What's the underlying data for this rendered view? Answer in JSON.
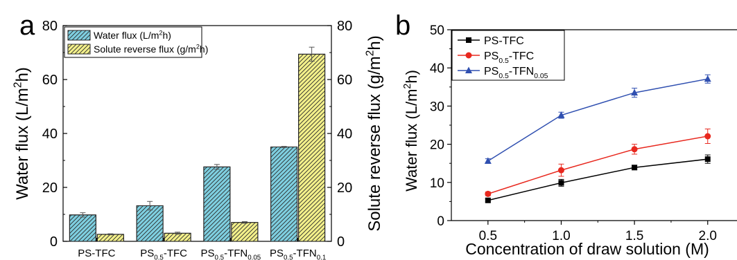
{
  "panels": {
    "a_label": "a",
    "b_label": "b"
  },
  "colors": {
    "water_flux": "#7ecfe0",
    "solute_flux": "#f3f08a",
    "ps_tfc": "#000000",
    "ps05_tfc": "#e8281e",
    "ps05_tfn005": "#2f4fb0"
  },
  "chart_data": [
    {
      "type": "bar",
      "panel": "a",
      "categories": [
        {
          "base": "PS-TFC",
          "sub": "",
          "mid": "",
          "sub2": ""
        },
        {
          "base": "PS",
          "sub": "0.5",
          "mid": "-TFC",
          "sub2": ""
        },
        {
          "base": "PS",
          "sub": "0.5",
          "mid": "-TFN",
          "sub2": "0.05"
        },
        {
          "base": "PS",
          "sub": "0.5",
          "mid": "-TFN",
          "sub2": "0.1"
        }
      ],
      "series": [
        {
          "name": "Water flux (L/m",
          "name_sup": "2",
          "name_tail": "h)",
          "axis": "left",
          "values": [
            9.8,
            13.2,
            27.6,
            35.0
          ],
          "errors": [
            0.8,
            1.6,
            0.9,
            0.2
          ]
        },
        {
          "name": "Solute reverse flux (g/m",
          "name_sup": "2",
          "name_tail": "h)",
          "axis": "right",
          "values": [
            2.6,
            3.0,
            7.0,
            69.4
          ],
          "errors": [
            0.2,
            0.4,
            0.3,
            2.6
          ]
        }
      ],
      "ylabel_left": {
        "main": "Water flux (L/m",
        "sup": "2",
        "tail": "h)"
      },
      "ylabel_right": {
        "main": "Solute reverse flux (g/m",
        "sup": "2",
        "tail": "h)"
      },
      "ylim": [
        0,
        80
      ],
      "yticks": [
        "0",
        "20",
        "40",
        "60",
        "80"
      ],
      "legend_position": "top-left"
    },
    {
      "type": "line",
      "panel": "b",
      "x": [
        0.5,
        1.0,
        1.5,
        2.0
      ],
      "xticks": [
        "0.5",
        "1.0",
        "1.5",
        "2.0"
      ],
      "yticks": [
        "0",
        "10",
        "20",
        "30",
        "40",
        "50"
      ],
      "xlim": [
        0.25,
        2.2
      ],
      "ylim": [
        0,
        50
      ],
      "xlabel": "Concentration of draw solution (M)",
      "ylabel": {
        "main": "Water flux (L/m",
        "sup": "2",
        "tail": "h)"
      },
      "series": [
        {
          "name": "PS-TFC",
          "sub": "",
          "mid": "",
          "sub2": "",
          "marker": "square",
          "values": [
            5.3,
            9.9,
            13.9,
            16.1
          ],
          "errors": [
            0.4,
            0.9,
            0.6,
            1.1
          ]
        },
        {
          "name": "PS",
          "sub": "0.5",
          "mid": "-TFC",
          "sub2": "",
          "marker": "circle",
          "values": [
            7.0,
            13.2,
            18.7,
            22.1
          ],
          "errors": [
            0.5,
            1.6,
            1.3,
            1.9
          ]
        },
        {
          "name": "PS",
          "sub": "0.5",
          "mid": "-TFN",
          "sub2": "0.05",
          "marker": "triangle",
          "values": [
            15.6,
            27.6,
            33.5,
            37.1
          ],
          "errors": [
            0.6,
            0.8,
            1.2,
            1.1
          ]
        }
      ],
      "legend_position": "top-left"
    }
  ]
}
